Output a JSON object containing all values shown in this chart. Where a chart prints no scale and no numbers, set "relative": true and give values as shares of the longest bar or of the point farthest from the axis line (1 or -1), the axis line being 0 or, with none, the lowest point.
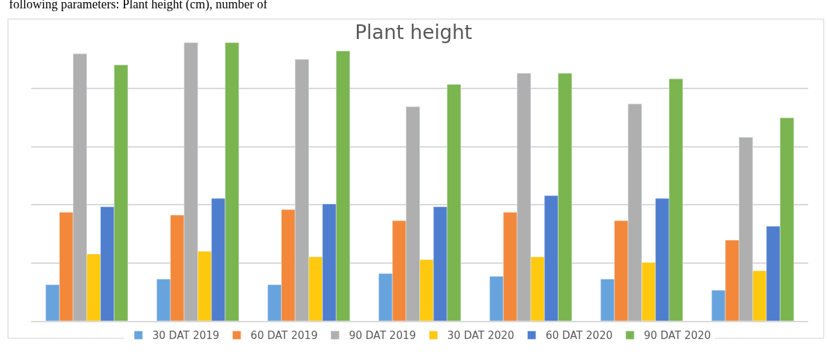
{
  "chart_data": {
    "type": "bar",
    "title": "Plant height",
    "relative": true,
    "grid": "y",
    "legend": "bottom",
    "annotations": [
      "following parameters: Plant height (cm), number of"
    ],
    "categories": [
      null,
      null,
      null,
      null,
      null,
      null,
      null
    ],
    "series": [
      {
        "name": "30 DAT 2019",
        "color": "#67a4dd",
        "values": [
          0.13,
          0.15,
          0.13,
          0.17,
          0.16,
          0.15,
          0.11
        ]
      },
      {
        "name": "60 DAT 2019",
        "color": "#f4883a",
        "values": [
          0.39,
          0.38,
          0.4,
          0.36,
          0.39,
          0.36,
          0.29
        ]
      },
      {
        "name": "90 DAT 2019",
        "color": "#afafaf",
        "values": [
          0.96,
          1.0,
          0.94,
          0.77,
          0.89,
          0.78,
          0.66
        ]
      },
      {
        "name": "30 DAT 2020",
        "color": "#fec90f",
        "values": [
          0.24,
          0.25,
          0.23,
          0.22,
          0.23,
          0.21,
          0.18
        ]
      },
      {
        "name": "60 DAT 2020",
        "color": "#4f7ecf",
        "values": [
          0.41,
          0.44,
          0.42,
          0.41,
          0.45,
          0.44,
          0.34
        ]
      },
      {
        "name": "90 DAT 2020",
        "color": "#7ab550",
        "values": [
          0.92,
          1.0,
          0.97,
          0.85,
          0.89,
          0.87,
          0.73
        ]
      }
    ]
  }
}
